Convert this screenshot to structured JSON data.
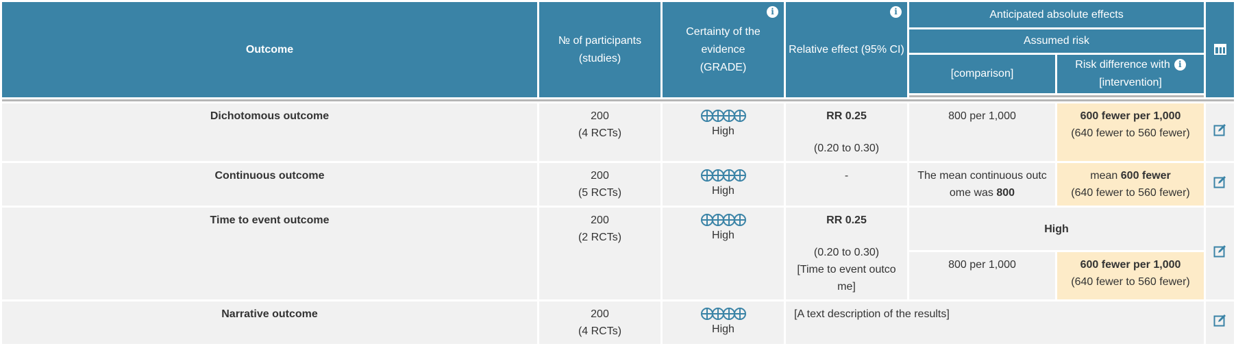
{
  "header": {
    "outcome": "Outcome",
    "participants_l1": "№ of participants",
    "participants_l2": "(studies)",
    "certainty_l1": "Certainty of the",
    "certainty_l2": "evidence",
    "certainty_l3": "(GRADE)",
    "relative": "Relative effect (95% CI)",
    "anticipated": "Anticipated absolute effects",
    "assumed": "Assumed risk",
    "comparison": "[comparison]",
    "riskdiff_l1": "Risk difference with",
    "riskdiff_l2": "[intervention]",
    "info_glyph": "i",
    "icons": {
      "info": "info-icon",
      "columns": "table-columns-icon",
      "edit": "edit-icon",
      "certainty_mark": "circled-plus-icon"
    }
  },
  "colors": {
    "header_bg": "#3a83a6",
    "row_bg": "#f1f1f1",
    "highlight_bg": "#fdebc8"
  },
  "rows": [
    {
      "outcome": "Dichotomous outcome",
      "participants": "200",
      "studies": "(4 RCTs)",
      "certainty_symbols": "⊕⊕⊕⊕",
      "certainty": "High",
      "relative_main": "RR 0.25",
      "relative_ci": "(0.20 to 0.30)",
      "comparison": "800 per 1,000",
      "diff_main": "600 fewer per 1,000",
      "diff_ci": "(640 fewer to 560 fewer)"
    },
    {
      "outcome": "Continuous outcome",
      "participants": "200",
      "studies": "(5 RCTs)",
      "certainty_symbols": "⊕⊕⊕⊕",
      "certainty": "High",
      "relative_main": "-",
      "comparison_l1": "The mean continuous outc",
      "comparison_l2_pre": "ome was ",
      "comparison_l2_val": "800",
      "diff_pre": "mean ",
      "diff_main": "600 fewer",
      "diff_ci": "(640 fewer to 560 fewer)"
    },
    {
      "outcome": "Time to event outcome",
      "participants": "200",
      "studies": "(2 RCTs)",
      "certainty_symbols": "⊕⊕⊕⊕",
      "certainty": "High",
      "relative_main": "RR 0.25",
      "relative_ci": "(0.20 to 0.30)",
      "relative_note_l1": "[Time to event outco",
      "relative_note_l2": "me]",
      "risk_label": "High",
      "comparison": "800 per 1,000",
      "diff_main": "600 fewer per 1,000",
      "diff_ci": "(640 fewer to 560 fewer)"
    },
    {
      "outcome": "Narrative outcome",
      "participants": "200",
      "studies": "(4 RCTs)",
      "certainty_symbols": "⊕⊕⊕⊕",
      "certainty": "High",
      "narrative": "[A text description of the results]"
    }
  ]
}
